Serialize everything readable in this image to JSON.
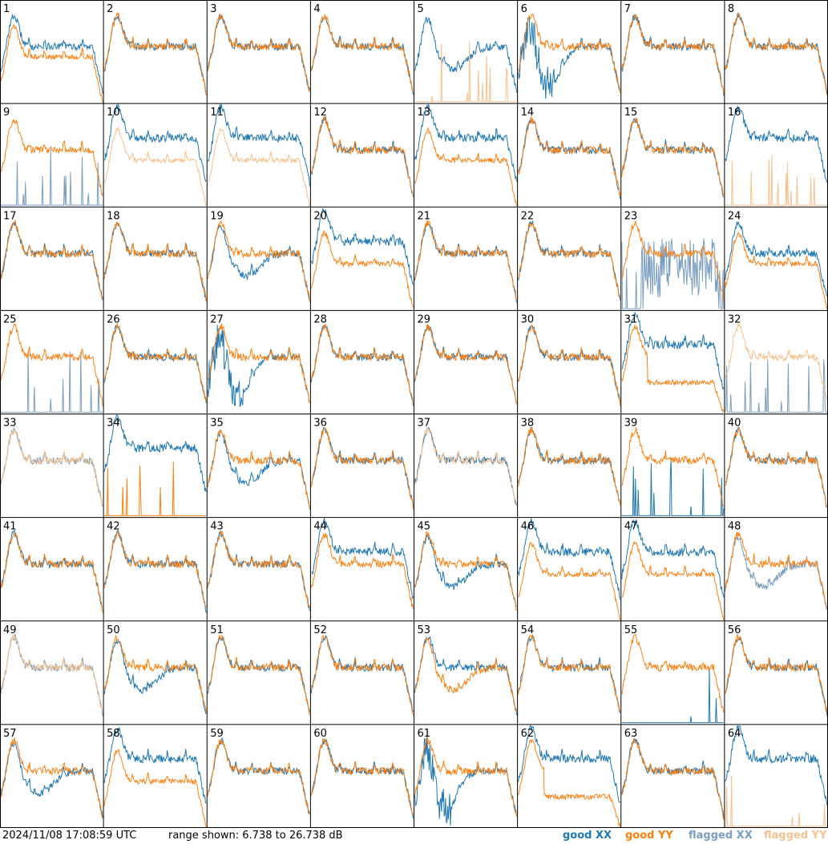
{
  "footer": {
    "timestamp": "2024/11/08 17:08:59 UTC",
    "range_text": "range shown: 6.738 to 26.738 dB"
  },
  "legend": {
    "good_xx": "good XX",
    "good_yy": "good YY",
    "flagged_xx": "flagged XX",
    "flagged_yy": "flagged YY"
  },
  "colors": {
    "good_xx": "#1f77b4",
    "good_yy": "#ff7f0e",
    "flagged_xx": "#7a9ebf",
    "flagged_yy": "#f6c18e",
    "grid": "#000000",
    "background": "#ffffff"
  },
  "chart_data": {
    "type": "line",
    "layout": "8x8 small multiples",
    "ylim": [
      6.738,
      26.738
    ],
    "yunit": "dB",
    "x": "frequency channel (unlabeled)",
    "panels": [
      {
        "id": "1",
        "xx": "good",
        "yy": "good",
        "shape_xx": "normal",
        "shape_yy": "low"
      },
      {
        "id": "2",
        "xx": "good",
        "yy": "good",
        "shape_xx": "normal",
        "shape_yy": "normal"
      },
      {
        "id": "3",
        "xx": "good",
        "yy": "good",
        "shape_xx": "normal",
        "shape_yy": "normal"
      },
      {
        "id": "4",
        "xx": "good",
        "yy": "good",
        "shape_xx": "normal",
        "shape_yy": "normal"
      },
      {
        "id": "5",
        "xx": "good",
        "yy": "flagged",
        "shape_xx": "dip",
        "shape_yy": "spiky_low"
      },
      {
        "id": "6",
        "xx": "good",
        "yy": "good",
        "shape_xx": "deep_dip",
        "shape_yy": "normal"
      },
      {
        "id": "7",
        "xx": "good",
        "yy": "good",
        "shape_xx": "normal",
        "shape_yy": "normal"
      },
      {
        "id": "8",
        "xx": "good",
        "yy": "good",
        "shape_xx": "normal",
        "shape_yy": "normal"
      },
      {
        "id": "9",
        "xx": "flagged",
        "yy": "good",
        "shape_xx": "spiky_low",
        "shape_yy": "normal"
      },
      {
        "id": "10",
        "xx": "good",
        "yy": "flagged",
        "shape_xx": "high",
        "shape_yy": "low"
      },
      {
        "id": "11",
        "xx": "good",
        "yy": "flagged",
        "shape_xx": "high",
        "shape_yy": "low"
      },
      {
        "id": "12",
        "xx": "good",
        "yy": "good",
        "shape_xx": "normal",
        "shape_yy": "normal"
      },
      {
        "id": "13",
        "xx": "good",
        "yy": "good",
        "shape_xx": "high",
        "shape_yy": "low"
      },
      {
        "id": "14",
        "xx": "good",
        "yy": "good",
        "shape_xx": "normal",
        "shape_yy": "normal"
      },
      {
        "id": "15",
        "xx": "good",
        "yy": "good",
        "shape_xx": "normal",
        "shape_yy": "normal"
      },
      {
        "id": "16",
        "xx": "good",
        "yy": "flagged",
        "shape_xx": "high",
        "shape_yy": "spiky_low"
      },
      {
        "id": "17",
        "xx": "good",
        "yy": "good",
        "shape_xx": "normal",
        "shape_yy": "normal"
      },
      {
        "id": "18",
        "xx": "good",
        "yy": "good",
        "shape_xx": "normal",
        "shape_yy": "normal"
      },
      {
        "id": "19",
        "xx": "good",
        "yy": "good",
        "shape_xx": "dip",
        "shape_yy": "normal"
      },
      {
        "id": "20",
        "xx": "good",
        "yy": "good",
        "shape_xx": "high",
        "shape_yy": "low"
      },
      {
        "id": "21",
        "xx": "good",
        "yy": "good",
        "shape_xx": "normal",
        "shape_yy": "normal"
      },
      {
        "id": "22",
        "xx": "good",
        "yy": "good",
        "shape_xx": "normal",
        "shape_yy": "normal"
      },
      {
        "id": "23",
        "xx": "flagged",
        "yy": "good",
        "shape_xx": "noisy_low",
        "shape_yy": "normal"
      },
      {
        "id": "24",
        "xx": "good",
        "yy": "good",
        "shape_xx": "normal",
        "shape_yy": "low"
      },
      {
        "id": "25",
        "xx": "flagged",
        "yy": "good",
        "shape_xx": "spiky_low",
        "shape_yy": "normal"
      },
      {
        "id": "26",
        "xx": "good",
        "yy": "good",
        "shape_xx": "normal",
        "shape_yy": "normal"
      },
      {
        "id": "27",
        "xx": "good",
        "yy": "good",
        "shape_xx": "deep_dip",
        "shape_yy": "normal"
      },
      {
        "id": "28",
        "xx": "good",
        "yy": "good",
        "shape_xx": "normal",
        "shape_yy": "normal"
      },
      {
        "id": "29",
        "xx": "good",
        "yy": "good",
        "shape_xx": "normal",
        "shape_yy": "normal"
      },
      {
        "id": "30",
        "xx": "good",
        "yy": "good",
        "shape_xx": "normal",
        "shape_yy": "normal"
      },
      {
        "id": "31",
        "xx": "good",
        "yy": "good",
        "shape_xx": "high",
        "shape_yy": "very_low"
      },
      {
        "id": "32",
        "xx": "flagged",
        "yy": "flagged",
        "shape_xx": "spiky_low",
        "shape_yy": "normal"
      },
      {
        "id": "33",
        "xx": "flagged",
        "yy": "flagged",
        "shape_xx": "normal",
        "shape_yy": "normal"
      },
      {
        "id": "34",
        "xx": "good",
        "yy": "good",
        "shape_xx": "high",
        "shape_yy": "spiky_low"
      },
      {
        "id": "35",
        "xx": "good",
        "yy": "good",
        "shape_xx": "dip",
        "shape_yy": "normal"
      },
      {
        "id": "36",
        "xx": "good",
        "yy": "good",
        "shape_xx": "normal",
        "shape_yy": "normal"
      },
      {
        "id": "37",
        "xx": "good",
        "yy": "flagged",
        "shape_xx": "normal",
        "shape_yy": "normal"
      },
      {
        "id": "38",
        "xx": "good",
        "yy": "good",
        "shape_xx": "normal",
        "shape_yy": "normal"
      },
      {
        "id": "39",
        "xx": "good",
        "yy": "good",
        "shape_xx": "spiky_low",
        "shape_yy": "normal"
      },
      {
        "id": "40",
        "xx": "good",
        "yy": "good",
        "shape_xx": "normal",
        "shape_yy": "normal"
      },
      {
        "id": "41",
        "xx": "good",
        "yy": "good",
        "shape_xx": "normal",
        "shape_yy": "normal"
      },
      {
        "id": "42",
        "xx": "good",
        "yy": "good",
        "shape_xx": "normal",
        "shape_yy": "normal"
      },
      {
        "id": "43",
        "xx": "good",
        "yy": "good",
        "shape_xx": "normal",
        "shape_yy": "normal"
      },
      {
        "id": "44",
        "xx": "good",
        "yy": "good",
        "shape_xx": "high",
        "shape_yy": "normal"
      },
      {
        "id": "45",
        "xx": "good",
        "yy": "good",
        "shape_xx": "dip",
        "shape_yy": "normal"
      },
      {
        "id": "46",
        "xx": "good",
        "yy": "good",
        "shape_xx": "high",
        "shape_yy": "low"
      },
      {
        "id": "47",
        "xx": "good",
        "yy": "good",
        "shape_xx": "high",
        "shape_yy": "low"
      },
      {
        "id": "48",
        "xx": "flagged",
        "yy": "good",
        "shape_xx": "dip",
        "shape_yy": "normal"
      },
      {
        "id": "49",
        "xx": "flagged",
        "yy": "flagged",
        "shape_xx": "normal",
        "shape_yy": "normal"
      },
      {
        "id": "50",
        "xx": "good",
        "yy": "good",
        "shape_xx": "dip",
        "shape_yy": "normal"
      },
      {
        "id": "51",
        "xx": "good",
        "yy": "good",
        "shape_xx": "normal",
        "shape_yy": "normal"
      },
      {
        "id": "52",
        "xx": "good",
        "yy": "good",
        "shape_xx": "normal",
        "shape_yy": "normal"
      },
      {
        "id": "53",
        "xx": "good",
        "yy": "good",
        "shape_xx": "normal",
        "shape_yy": "dip"
      },
      {
        "id": "54",
        "xx": "good",
        "yy": "good",
        "shape_xx": "normal",
        "shape_yy": "normal"
      },
      {
        "id": "55",
        "xx": "good",
        "yy": "good",
        "shape_xx": "spiky_low",
        "shape_yy": "normal"
      },
      {
        "id": "56",
        "xx": "good",
        "yy": "good",
        "shape_xx": "normal",
        "shape_yy": "normal"
      },
      {
        "id": "57",
        "xx": "good",
        "yy": "good",
        "shape_xx": "dip",
        "shape_yy": "normal"
      },
      {
        "id": "58",
        "xx": "good",
        "yy": "good",
        "shape_xx": "high",
        "shape_yy": "low"
      },
      {
        "id": "59",
        "xx": "good",
        "yy": "good",
        "shape_xx": "normal",
        "shape_yy": "normal"
      },
      {
        "id": "60",
        "xx": "good",
        "yy": "good",
        "shape_xx": "normal",
        "shape_yy": "normal"
      },
      {
        "id": "61",
        "xx": "good",
        "yy": "good",
        "shape_xx": "deep_dip",
        "shape_yy": "normal"
      },
      {
        "id": "62",
        "xx": "good",
        "yy": "good",
        "shape_xx": "high",
        "shape_yy": "very_low"
      },
      {
        "id": "63",
        "xx": "good",
        "yy": "good",
        "shape_xx": "normal",
        "shape_yy": "normal"
      },
      {
        "id": "64",
        "xx": "good",
        "yy": "flagged",
        "shape_xx": "high",
        "shape_yy": "spiky_low"
      }
    ]
  }
}
